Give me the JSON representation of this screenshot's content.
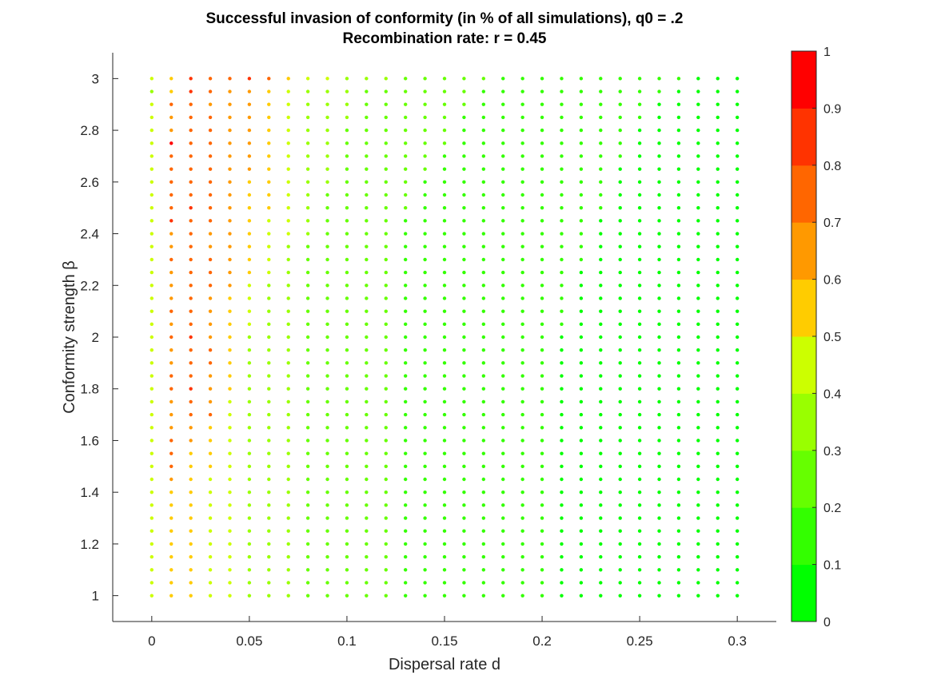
{
  "chart_data": {
    "type": "scatter",
    "title": "Successful invasion of conformity (in % of all simulations), q0 = .2",
    "subtitle": "Recombination rate: r = 0.45",
    "xlabel": "Dispersal rate d",
    "ylabel": "Conformity strength β",
    "xlim": [
      -0.02,
      0.32
    ],
    "ylim": [
      0.9,
      3.1
    ],
    "xticks": [
      "0",
      "0.05",
      "0.1",
      "0.15",
      "0.2",
      "0.25",
      "0.3"
    ],
    "xtick_values": [
      0,
      0.05,
      0.1,
      0.15,
      0.2,
      0.25,
      0.3
    ],
    "yticks": [
      "1",
      "1.2",
      "1.4",
      "1.6",
      "1.8",
      "2",
      "2.2",
      "2.4",
      "2.6",
      "2.8",
      "3"
    ],
    "ytick_values": [
      1,
      1.2,
      1.4,
      1.6,
      1.8,
      2,
      2.2,
      2.4,
      2.6,
      2.8,
      3
    ],
    "grid": false,
    "x_start": 0,
    "x_step": 0.01,
    "y_start": 1,
    "y_step": 0.05,
    "columns": [
      [
        0.45,
        0.45,
        0.45,
        0.45,
        0.45,
        0.45,
        0.45,
        0.45,
        0.45,
        0.45,
        0.45,
        0.45,
        0.45,
        0.45,
        0.45,
        0.45,
        0.45,
        0.45,
        0.45,
        0.45,
        0.45,
        0.45,
        0.45,
        0.45,
        0.45,
        0.45,
        0.45,
        0.45,
        0.45,
        0.45,
        0.45,
        0.45,
        0.45,
        0.45,
        0.45,
        0.45,
        0.45,
        0.45,
        0.45,
        0.35,
        0.45
      ],
      [
        0.55,
        0.55,
        0.55,
        0.55,
        0.55,
        0.55,
        0.55,
        0.55,
        0.55,
        0.65,
        0.75,
        0.75,
        0.75,
        0.65,
        0.65,
        0.65,
        0.75,
        0.75,
        0.65,
        0.65,
        0.75,
        0.65,
        0.75,
        0.65,
        0.65,
        0.65,
        0.75,
        0.65,
        0.65,
        0.85,
        0.75,
        0.75,
        0.75,
        0.75,
        0.75,
        0.95,
        0.65,
        0.65,
        0.75,
        0.55,
        0.55
      ],
      [
        0.55,
        0.55,
        0.55,
        0.55,
        0.55,
        0.55,
        0.55,
        0.55,
        0.55,
        0.55,
        0.55,
        0.55,
        0.65,
        0.65,
        0.75,
        0.75,
        0.85,
        0.75,
        0.75,
        0.75,
        0.85,
        0.75,
        0.75,
        0.75,
        0.75,
        0.75,
        0.75,
        0.75,
        0.75,
        0.75,
        0.85,
        0.75,
        0.75,
        0.75,
        0.75,
        0.75,
        0.75,
        0.75,
        0.75,
        0.85,
        0.85
      ],
      [
        0.45,
        0.45,
        0.45,
        0.45,
        0.45,
        0.45,
        0.45,
        0.45,
        0.45,
        0.45,
        0.55,
        0.55,
        0.55,
        0.55,
        0.75,
        0.65,
        0.65,
        0.65,
        0.75,
        0.75,
        0.65,
        0.65,
        0.65,
        0.65,
        0.75,
        0.75,
        0.75,
        0.65,
        0.65,
        0.75,
        0.75,
        0.75,
        0.75,
        0.75,
        0.75,
        0.75,
        0.75,
        0.75,
        0.65,
        0.75,
        0.75
      ],
      [
        0.45,
        0.45,
        0.45,
        0.45,
        0.45,
        0.45,
        0.45,
        0.45,
        0.45,
        0.45,
        0.45,
        0.45,
        0.45,
        0.45,
        0.45,
        0.45,
        0.55,
        0.55,
        0.55,
        0.55,
        0.55,
        0.55,
        0.55,
        0.55,
        0.65,
        0.65,
        0.65,
        0.65,
        0.65,
        0.65,
        0.65,
        0.65,
        0.65,
        0.65,
        0.65,
        0.65,
        0.65,
        0.65,
        0.65,
        0.65,
        0.75
      ],
      [
        0.35,
        0.35,
        0.35,
        0.35,
        0.35,
        0.35,
        0.35,
        0.35,
        0.35,
        0.35,
        0.35,
        0.35,
        0.35,
        0.35,
        0.35,
        0.35,
        0.35,
        0.35,
        0.35,
        0.35,
        0.35,
        0.45,
        0.45,
        0.45,
        0.45,
        0.55,
        0.55,
        0.55,
        0.55,
        0.55,
        0.55,
        0.55,
        0.55,
        0.65,
        0.65,
        0.65,
        0.65,
        0.65,
        0.65,
        0.65,
        0.85
      ],
      [
        0.35,
        0.35,
        0.35,
        0.35,
        0.35,
        0.35,
        0.35,
        0.35,
        0.35,
        0.35,
        0.35,
        0.35,
        0.35,
        0.35,
        0.35,
        0.35,
        0.35,
        0.35,
        0.35,
        0.35,
        0.35,
        0.35,
        0.35,
        0.35,
        0.35,
        0.45,
        0.45,
        0.45,
        0.45,
        0.45,
        0.55,
        0.55,
        0.55,
        0.55,
        0.55,
        0.55,
        0.55,
        0.55,
        0.55,
        0.55,
        0.75
      ],
      [
        0.35,
        0.35,
        0.35,
        0.35,
        0.35,
        0.35,
        0.35,
        0.35,
        0.35,
        0.35,
        0.35,
        0.35,
        0.35,
        0.35,
        0.35,
        0.35,
        0.35,
        0.35,
        0.35,
        0.35,
        0.35,
        0.35,
        0.35,
        0.35,
        0.35,
        0.35,
        0.35,
        0.35,
        0.45,
        0.45,
        0.45,
        0.45,
        0.45,
        0.45,
        0.45,
        0.45,
        0.45,
        0.45,
        0.45,
        0.45,
        0.55
      ],
      [
        0.25,
        0.25,
        0.25,
        0.25,
        0.25,
        0.25,
        0.25,
        0.25,
        0.25,
        0.25,
        0.25,
        0.25,
        0.25,
        0.25,
        0.25,
        0.25,
        0.25,
        0.25,
        0.25,
        0.25,
        0.25,
        0.25,
        0.25,
        0.25,
        0.25,
        0.25,
        0.25,
        0.25,
        0.35,
        0.35,
        0.35,
        0.35,
        0.35,
        0.35,
        0.35,
        0.35,
        0.35,
        0.35,
        0.35,
        0.35,
        0.45
      ],
      [
        0.25,
        0.25,
        0.25,
        0.25,
        0.25,
        0.25,
        0.25,
        0.25,
        0.25,
        0.25,
        0.25,
        0.25,
        0.25,
        0.25,
        0.25,
        0.25,
        0.25,
        0.25,
        0.25,
        0.25,
        0.25,
        0.25,
        0.25,
        0.25,
        0.25,
        0.25,
        0.25,
        0.25,
        0.25,
        0.25,
        0.25,
        0.25,
        0.35,
        0.35,
        0.35,
        0.35,
        0.35,
        0.35,
        0.35,
        0.35,
        0.45
      ],
      [
        0.25,
        0.25,
        0.25,
        0.25,
        0.25,
        0.25,
        0.25,
        0.25,
        0.25,
        0.25,
        0.25,
        0.25,
        0.25,
        0.25,
        0.25,
        0.25,
        0.25,
        0.25,
        0.25,
        0.25,
        0.25,
        0.25,
        0.25,
        0.25,
        0.25,
        0.25,
        0.25,
        0.25,
        0.25,
        0.25,
        0.25,
        0.25,
        0.25,
        0.25,
        0.25,
        0.25,
        0.25,
        0.35,
        0.35,
        0.35,
        0.35
      ],
      [
        0.25,
        0.25,
        0.25,
        0.25,
        0.25,
        0.25,
        0.25,
        0.25,
        0.25,
        0.25,
        0.25,
        0.25,
        0.25,
        0.25,
        0.25,
        0.25,
        0.25,
        0.25,
        0.25,
        0.25,
        0.25,
        0.25,
        0.25,
        0.25,
        0.25,
        0.25,
        0.25,
        0.25,
        0.25,
        0.25,
        0.25,
        0.25,
        0.25,
        0.25,
        0.25,
        0.25,
        0.25,
        0.25,
        0.25,
        0.25,
        0.35
      ],
      [
        0.25,
        0.25,
        0.25,
        0.25,
        0.25,
        0.25,
        0.25,
        0.25,
        0.25,
        0.25,
        0.25,
        0.25,
        0.25,
        0.25,
        0.25,
        0.25,
        0.25,
        0.25,
        0.25,
        0.25,
        0.25,
        0.25,
        0.25,
        0.25,
        0.25,
        0.25,
        0.25,
        0.25,
        0.25,
        0.25,
        0.25,
        0.25,
        0.25,
        0.25,
        0.25,
        0.25,
        0.25,
        0.25,
        0.25,
        0.25,
        0.35
      ],
      [
        0.15,
        0.15,
        0.15,
        0.15,
        0.15,
        0.15,
        0.15,
        0.15,
        0.15,
        0.15,
        0.15,
        0.15,
        0.15,
        0.15,
        0.15,
        0.15,
        0.15,
        0.15,
        0.15,
        0.15,
        0.15,
        0.15,
        0.15,
        0.15,
        0.15,
        0.15,
        0.15,
        0.15,
        0.15,
        0.15,
        0.25,
        0.25,
        0.25,
        0.25,
        0.25,
        0.25,
        0.25,
        0.25,
        0.25,
        0.25,
        0.25
      ],
      [
        0.15,
        0.15,
        0.15,
        0.15,
        0.15,
        0.15,
        0.15,
        0.15,
        0.15,
        0.15,
        0.15,
        0.15,
        0.15,
        0.15,
        0.15,
        0.15,
        0.15,
        0.15,
        0.15,
        0.15,
        0.15,
        0.15,
        0.15,
        0.15,
        0.15,
        0.15,
        0.15,
        0.15,
        0.15,
        0.15,
        0.15,
        0.15,
        0.15,
        0.25,
        0.25,
        0.25,
        0.25,
        0.25,
        0.25,
        0.25,
        0.25
      ],
      [
        0.15,
        0.15,
        0.15,
        0.15,
        0.15,
        0.15,
        0.15,
        0.15,
        0.15,
        0.15,
        0.15,
        0.15,
        0.15,
        0.15,
        0.15,
        0.15,
        0.15,
        0.15,
        0.15,
        0.15,
        0.15,
        0.15,
        0.15,
        0.15,
        0.15,
        0.15,
        0.15,
        0.15,
        0.15,
        0.15,
        0.15,
        0.15,
        0.15,
        0.15,
        0.15,
        0.25,
        0.25,
        0.25,
        0.25,
        0.25,
        0.25
      ],
      [
        0.15,
        0.15,
        0.15,
        0.15,
        0.15,
        0.15,
        0.15,
        0.15,
        0.15,
        0.15,
        0.15,
        0.15,
        0.15,
        0.15,
        0.15,
        0.15,
        0.15,
        0.15,
        0.15,
        0.15,
        0.15,
        0.15,
        0.15,
        0.15,
        0.15,
        0.15,
        0.15,
        0.15,
        0.15,
        0.15,
        0.15,
        0.15,
        0.15,
        0.15,
        0.15,
        0.15,
        0.15,
        0.15,
        0.25,
        0.25,
        0.25
      ],
      [
        0.15,
        0.15,
        0.15,
        0.15,
        0.15,
        0.15,
        0.15,
        0.15,
        0.15,
        0.15,
        0.15,
        0.15,
        0.15,
        0.15,
        0.15,
        0.15,
        0.15,
        0.15,
        0.15,
        0.15,
        0.15,
        0.15,
        0.15,
        0.15,
        0.15,
        0.15,
        0.15,
        0.15,
        0.15,
        0.15,
        0.15,
        0.15,
        0.15,
        0.15,
        0.15,
        0.15,
        0.15,
        0.15,
        0.15,
        0.15,
        0.25
      ],
      [
        0.15,
        0.15,
        0.15,
        0.15,
        0.15,
        0.15,
        0.15,
        0.15,
        0.15,
        0.15,
        0.15,
        0.15,
        0.15,
        0.15,
        0.15,
        0.15,
        0.15,
        0.15,
        0.15,
        0.15,
        0.15,
        0.15,
        0.15,
        0.15,
        0.15,
        0.15,
        0.15,
        0.15,
        0.15,
        0.15,
        0.15,
        0.15,
        0.15,
        0.15,
        0.15,
        0.15,
        0.15,
        0.15,
        0.15,
        0.15,
        0.15
      ],
      [
        0.15,
        0.15,
        0.15,
        0.15,
        0.15,
        0.15,
        0.15,
        0.15,
        0.15,
        0.15,
        0.15,
        0.15,
        0.15,
        0.15,
        0.15,
        0.15,
        0.15,
        0.15,
        0.15,
        0.15,
        0.15,
        0.15,
        0.15,
        0.15,
        0.15,
        0.15,
        0.15,
        0.15,
        0.15,
        0.15,
        0.15,
        0.15,
        0.15,
        0.15,
        0.15,
        0.15,
        0.15,
        0.15,
        0.15,
        0.15,
        0.15
      ],
      [
        0.15,
        0.15,
        0.15,
        0.15,
        0.15,
        0.15,
        0.15,
        0.15,
        0.15,
        0.15,
        0.15,
        0.15,
        0.15,
        0.15,
        0.15,
        0.15,
        0.15,
        0.15,
        0.15,
        0.15,
        0.15,
        0.15,
        0.15,
        0.15,
        0.15,
        0.15,
        0.15,
        0.15,
        0.15,
        0.15,
        0.15,
        0.15,
        0.15,
        0.15,
        0.15,
        0.15,
        0.15,
        0.15,
        0.15,
        0.15,
        0.15
      ],
      [
        0.05,
        0.05,
        0.05,
        0.05,
        0.05,
        0.05,
        0.05,
        0.05,
        0.05,
        0.05,
        0.05,
        0.05,
        0.05,
        0.05,
        0.05,
        0.05,
        0.05,
        0.05,
        0.05,
        0.05,
        0.05,
        0.15,
        0.15,
        0.15,
        0.15,
        0.15,
        0.15,
        0.15,
        0.15,
        0.15,
        0.15,
        0.15,
        0.15,
        0.15,
        0.15,
        0.15,
        0.15,
        0.15,
        0.15,
        0.15,
        0.15
      ],
      [
        0.05,
        0.05,
        0.05,
        0.05,
        0.05,
        0.05,
        0.05,
        0.05,
        0.05,
        0.05,
        0.05,
        0.05,
        0.05,
        0.05,
        0.05,
        0.05,
        0.05,
        0.05,
        0.05,
        0.05,
        0.05,
        0.05,
        0.05,
        0.05,
        0.05,
        0.05,
        0.15,
        0.15,
        0.15,
        0.15,
        0.15,
        0.15,
        0.15,
        0.15,
        0.15,
        0.15,
        0.15,
        0.15,
        0.15,
        0.15,
        0.15
      ],
      [
        0.05,
        0.05,
        0.05,
        0.05,
        0.05,
        0.05,
        0.05,
        0.05,
        0.05,
        0.05,
        0.05,
        0.05,
        0.05,
        0.05,
        0.05,
        0.05,
        0.05,
        0.05,
        0.05,
        0.05,
        0.05,
        0.05,
        0.05,
        0.05,
        0.05,
        0.05,
        0.05,
        0.05,
        0.05,
        0.05,
        0.15,
        0.15,
        0.15,
        0.15,
        0.15,
        0.15,
        0.15,
        0.15,
        0.15,
        0.15,
        0.15
      ],
      [
        0.05,
        0.05,
        0.05,
        0.05,
        0.05,
        0.05,
        0.05,
        0.05,
        0.05,
        0.05,
        0.05,
        0.05,
        0.05,
        0.05,
        0.05,
        0.05,
        0.05,
        0.05,
        0.05,
        0.05,
        0.05,
        0.05,
        0.05,
        0.05,
        0.05,
        0.05,
        0.05,
        0.05,
        0.05,
        0.05,
        0.05,
        0.05,
        0.05,
        0.05,
        0.15,
        0.15,
        0.15,
        0.15,
        0.15,
        0.15,
        0.15
      ],
      [
        0.05,
        0.05,
        0.05,
        0.05,
        0.05,
        0.05,
        0.05,
        0.05,
        0.05,
        0.05,
        0.05,
        0.05,
        0.05,
        0.05,
        0.05,
        0.05,
        0.05,
        0.05,
        0.05,
        0.05,
        0.05,
        0.05,
        0.05,
        0.05,
        0.05,
        0.05,
        0.05,
        0.05,
        0.05,
        0.05,
        0.05,
        0.05,
        0.05,
        0.05,
        0.05,
        0.05,
        0.05,
        0.15,
        0.15,
        0.15,
        0.15
      ],
      [
        0.05,
        0.05,
        0.05,
        0.05,
        0.05,
        0.05,
        0.05,
        0.05,
        0.05,
        0.05,
        0.05,
        0.05,
        0.05,
        0.05,
        0.05,
        0.05,
        0.05,
        0.05,
        0.05,
        0.05,
        0.05,
        0.05,
        0.05,
        0.05,
        0.05,
        0.05,
        0.05,
        0.05,
        0.05,
        0.05,
        0.05,
        0.05,
        0.05,
        0.05,
        0.05,
        0.05,
        0.05,
        0.05,
        0.05,
        0.15,
        0.15
      ],
      [
        0.05,
        0.05,
        0.05,
        0.05,
        0.05,
        0.05,
        0.05,
        0.05,
        0.05,
        0.05,
        0.05,
        0.05,
        0.05,
        0.05,
        0.05,
        0.05,
        0.05,
        0.05,
        0.05,
        0.05,
        0.05,
        0.05,
        0.05,
        0.05,
        0.05,
        0.05,
        0.05,
        0.05,
        0.05,
        0.05,
        0.05,
        0.05,
        0.05,
        0.05,
        0.05,
        0.05,
        0.05,
        0.05,
        0.05,
        0.05,
        0.15
      ],
      [
        0.05,
        0.05,
        0.05,
        0.05,
        0.05,
        0.05,
        0.05,
        0.05,
        0.05,
        0.05,
        0.05,
        0.05,
        0.05,
        0.05,
        0.05,
        0.05,
        0.05,
        0.05,
        0.05,
        0.05,
        0.05,
        0.05,
        0.05,
        0.05,
        0.05,
        0.05,
        0.05,
        0.05,
        0.05,
        0.05,
        0.05,
        0.05,
        0.05,
        0.05,
        0.05,
        0.05,
        0.05,
        0.05,
        0.05,
        0.05,
        0.05
      ],
      [
        0.05,
        0.05,
        0.05,
        0.05,
        0.05,
        0.05,
        0.05,
        0.05,
        0.05,
        0.05,
        0.05,
        0.05,
        0.05,
        0.05,
        0.05,
        0.05,
        0.05,
        0.05,
        0.05,
        0.05,
        0.05,
        0.05,
        0.05,
        0.05,
        0.05,
        0.05,
        0.05,
        0.05,
        0.05,
        0.05,
        0.05,
        0.05,
        0.05,
        0.05,
        0.05,
        0.05,
        0.05,
        0.05,
        0.05,
        0.05,
        0.05
      ],
      [
        0.05,
        0.05,
        0.05,
        0.05,
        0.05,
        0.05,
        0.05,
        0.05,
        0.05,
        0.05,
        0.05,
        0.05,
        0.05,
        0.05,
        0.05,
        0.05,
        0.05,
        0.05,
        0.05,
        0.05,
        0.05,
        0.05,
        0.05,
        0.05,
        0.05,
        0.05,
        0.05,
        0.05,
        0.05,
        0.05,
        0.05,
        0.05,
        0.05,
        0.05,
        0.05,
        0.05,
        0.05,
        0.05,
        0.05,
        0.05,
        0.05
      ]
    ],
    "colorbar": {
      "ticks": [
        "0",
        "0.1",
        "0.2",
        "0.3",
        "0.4",
        "0.5",
        "0.6",
        "0.7",
        "0.8",
        "0.9",
        "1"
      ],
      "tick_values": [
        0,
        0.1,
        0.2,
        0.3,
        0.4,
        0.5,
        0.6,
        0.7,
        0.8,
        0.9,
        1
      ],
      "colors": [
        "#00ff00",
        "#33ff00",
        "#66ff00",
        "#99ff00",
        "#ccff00",
        "#ffcc00",
        "#ff9900",
        "#ff6600",
        "#ff3300",
        "#ff0000"
      ],
      "clim": [
        0,
        1
      ]
    }
  }
}
